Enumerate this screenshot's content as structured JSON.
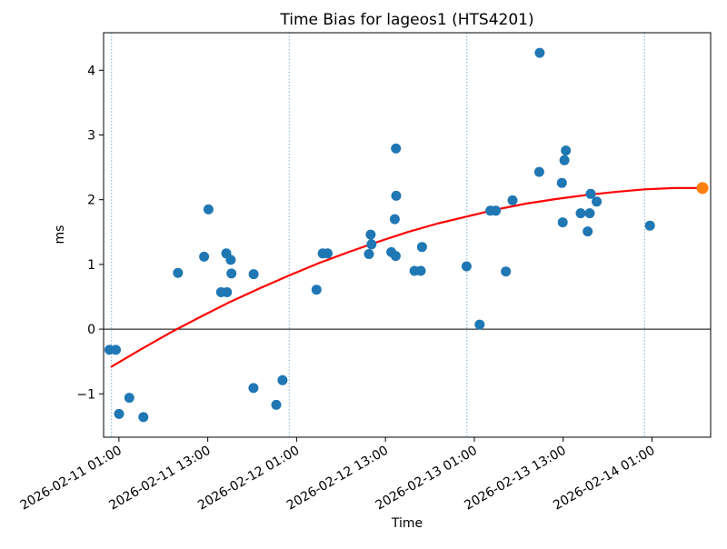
{
  "chart_data": {
    "type": "scatter",
    "title": "Time Bias for lageos1 (HTS4201)",
    "xlabel": "Time",
    "ylabel": "ms",
    "x_origin": "2026-02-11 00:00",
    "xlim_hours": [
      -1.07,
      80.92
    ],
    "ylim": [
      -1.67,
      4.58
    ],
    "grid": false,
    "legend": "none",
    "y_ticks": [
      -1,
      0,
      1,
      2,
      3,
      4
    ],
    "x_ticks": [
      {
        "hours": 1,
        "label": "2026-02-11 01:00"
      },
      {
        "hours": 13,
        "label": "2026-02-11 13:00"
      },
      {
        "hours": 25,
        "label": "2026-02-12 01:00"
      },
      {
        "hours": 37,
        "label": "2026-02-12 13:00"
      },
      {
        "hours": 49,
        "label": "2026-02-13 01:00"
      },
      {
        "hours": 61,
        "label": "2026-02-13 13:00"
      },
      {
        "hours": 73,
        "label": "2026-02-14 01:00"
      }
    ],
    "day_boundary_lines_hours": [
      0,
      24,
      48,
      72
    ],
    "zero_line": {
      "value": 0,
      "color": "#000000"
    },
    "colors": {
      "observations": "#1f77b4",
      "prediction": "#ff7f0e",
      "trend": "#ff0000",
      "day_lines": "#5b9fd4"
    },
    "series": [
      {
        "name": "observations",
        "marker": "circle",
        "color": "#1f77b4",
        "points": [
          {
            "t": "2026-02-10 23:44",
            "ms": -0.32
          },
          {
            "t": "2026-02-11 00:35",
            "ms": -0.32
          },
          {
            "t": "2026-02-11 01:01",
            "ms": -1.31
          },
          {
            "t": "2026-02-11 02:24",
            "ms": -1.06
          },
          {
            "t": "2026-02-11 04:18",
            "ms": -1.36
          },
          {
            "t": "2026-02-11 08:58",
            "ms": 0.87
          },
          {
            "t": "2026-02-11 12:30",
            "ms": 1.12
          },
          {
            "t": "2026-02-11 13:06",
            "ms": 1.85
          },
          {
            "t": "2026-02-11 14:48",
            "ms": 0.57
          },
          {
            "t": "2026-02-11 15:36",
            "ms": 0.57
          },
          {
            "t": "2026-02-11 15:30",
            "ms": 1.17
          },
          {
            "t": "2026-02-11 16:06",
            "ms": 1.07
          },
          {
            "t": "2026-02-11 16:12",
            "ms": 0.86
          },
          {
            "t": "2026-02-11 19:12",
            "ms": 0.85
          },
          {
            "t": "2026-02-11 19:10",
            "ms": -0.91
          },
          {
            "t": "2026-02-11 22:15",
            "ms": -1.17
          },
          {
            "t": "2026-02-11 23:06",
            "ms": -0.79
          },
          {
            "t": "2026-02-12 03:41",
            "ms": 0.61
          },
          {
            "t": "2026-02-12 04:31",
            "ms": 1.17
          },
          {
            "t": "2026-02-12 05:11",
            "ms": 1.17
          },
          {
            "t": "2026-02-12 10:46",
            "ms": 1.16
          },
          {
            "t": "2026-02-12 11:00",
            "ms": 1.46
          },
          {
            "t": "2026-02-12 11:07",
            "ms": 1.31
          },
          {
            "t": "2026-02-12 13:47",
            "ms": 1.19
          },
          {
            "t": "2026-02-12 14:23",
            "ms": 1.13
          },
          {
            "t": "2026-02-12 14:25",
            "ms": 2.79
          },
          {
            "t": "2026-02-12 14:27",
            "ms": 2.06
          },
          {
            "t": "2026-02-12 14:15",
            "ms": 1.7
          },
          {
            "t": "2026-02-12 16:55",
            "ms": 0.9
          },
          {
            "t": "2026-02-12 17:46",
            "ms": 0.9
          },
          {
            "t": "2026-02-12 17:56",
            "ms": 1.27
          },
          {
            "t": "2026-02-12 23:57",
            "ms": 0.97
          },
          {
            "t": "2026-02-13 01:43",
            "ms": 0.07
          },
          {
            "t": "2026-02-13 03:10",
            "ms": 1.83
          },
          {
            "t": "2026-02-13 03:54",
            "ms": 1.83
          },
          {
            "t": "2026-02-13 05:16",
            "ms": 0.89
          },
          {
            "t": "2026-02-13 06:10",
            "ms": 1.99
          },
          {
            "t": "2026-02-13 09:46",
            "ms": 2.43
          },
          {
            "t": "2026-02-13 09:50",
            "ms": 4.27
          },
          {
            "t": "2026-02-13 12:50",
            "ms": 2.26
          },
          {
            "t": "2026-02-13 12:56",
            "ms": 1.65
          },
          {
            "t": "2026-02-13 13:10",
            "ms": 2.61
          },
          {
            "t": "2026-02-13 13:22",
            "ms": 2.76
          },
          {
            "t": "2026-02-13 15:22",
            "ms": 1.79
          },
          {
            "t": "2026-02-13 16:19",
            "ms": 1.51
          },
          {
            "t": "2026-02-13 16:36",
            "ms": 1.79
          },
          {
            "t": "2026-02-13 16:43",
            "ms": 2.09
          },
          {
            "t": "2026-02-13 17:32",
            "ms": 1.97
          },
          {
            "t": "2026-02-14 00:43",
            "ms": 1.6
          }
        ]
      },
      {
        "name": "prediction",
        "marker": "circle",
        "color": "#ff7f0e",
        "points": [
          {
            "t": "2026-02-14 07:49",
            "ms": 2.18
          }
        ]
      },
      {
        "name": "trend-fit",
        "marker": "line",
        "color": "#ff0000",
        "points_hours_ms": [
          [
            0,
            -0.58
          ],
          [
            4,
            -0.31
          ],
          [
            8,
            -0.05
          ],
          [
            12,
            0.19
          ],
          [
            16,
            0.42
          ],
          [
            20,
            0.63
          ],
          [
            24,
            0.83
          ],
          [
            28,
            1.02
          ],
          [
            32,
            1.19
          ],
          [
            36,
            1.35
          ],
          [
            40,
            1.5
          ],
          [
            44,
            1.63
          ],
          [
            48,
            1.74
          ],
          [
            52,
            1.85
          ],
          [
            56,
            1.94
          ],
          [
            60,
            2.01
          ],
          [
            64,
            2.07
          ],
          [
            68,
            2.12
          ],
          [
            72,
            2.16
          ],
          [
            76,
            2.18
          ],
          [
            79.8,
            2.18
          ]
        ]
      }
    ]
  }
}
